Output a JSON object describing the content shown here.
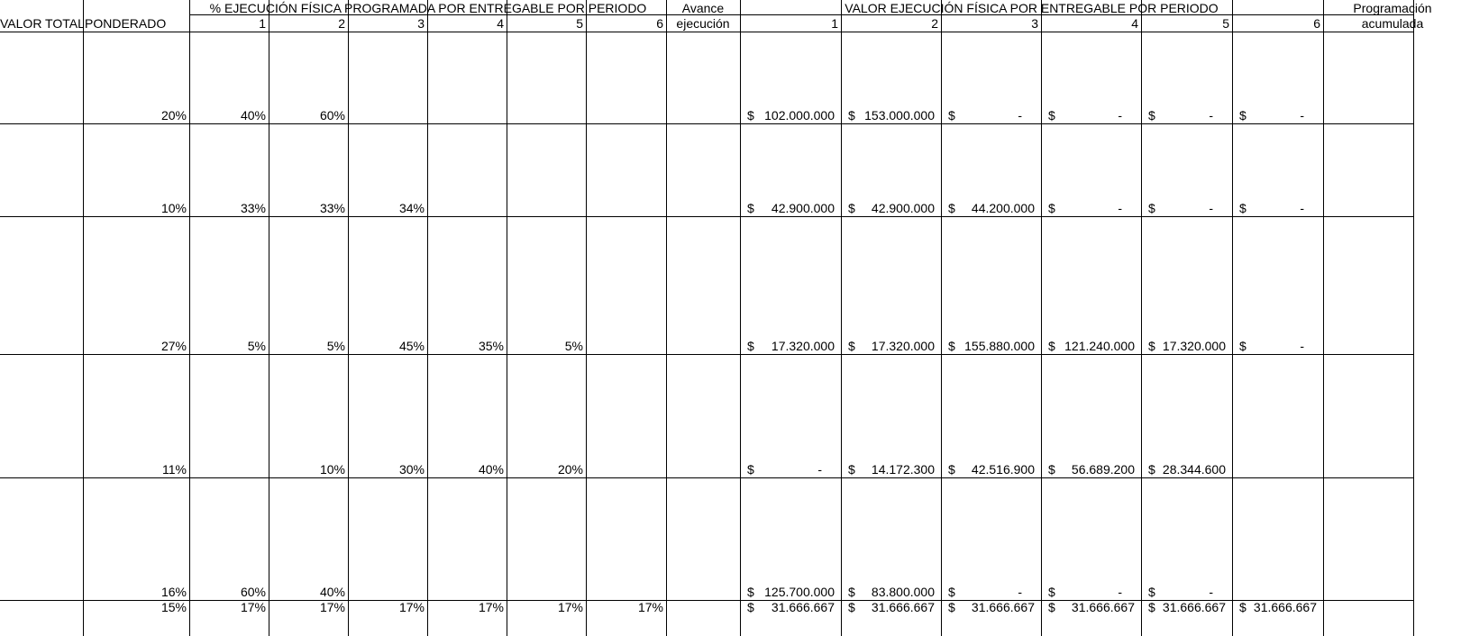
{
  "headers": {
    "valor_total": "VALOR TOTAL",
    "ponderado": "PONDERADO",
    "pct_group": "% EJECUCIÓN FÍSICA PROGRAMADA POR ENTREGABLE POR PERIODO",
    "avance_1": "Avance",
    "avance_2": "ejecución",
    "valor_group": "VALOR EJECUCIÓN FÍSICA POR ENTREGABLE POR PERIODO",
    "prog_1": "Programación",
    "prog_2": "acumulada",
    "periods": [
      "1",
      "2",
      "3",
      "4",
      "5",
      "6"
    ]
  },
  "currency_symbol": "$",
  "rows": [
    {
      "ponderado": "20%",
      "pct": [
        "40%",
        "60%",
        "",
        "",
        "",
        ""
      ],
      "values": [
        "102.000.000",
        "153.000.000",
        "-",
        "-",
        "-",
        "-"
      ]
    },
    {
      "ponderado": "10%",
      "pct": [
        "33%",
        "33%",
        "34%",
        "",
        "",
        ""
      ],
      "values": [
        "42.900.000",
        "42.900.000",
        "44.200.000",
        "-",
        "-",
        "-"
      ]
    },
    {
      "ponderado": "27%",
      "pct": [
        "5%",
        "5%",
        "45%",
        "35%",
        "5%",
        ""
      ],
      "values": [
        "17.320.000",
        "17.320.000",
        "155.880.000",
        "121.240.000",
        "17.320.000",
        "-"
      ]
    },
    {
      "ponderado": "11%",
      "pct": [
        "",
        "10%",
        "30%",
        "40%",
        "20%",
        ""
      ],
      "values": [
        "-",
        "14.172.300",
        "42.516.900",
        "56.689.200",
        "28.344.600",
        null
      ]
    },
    {
      "ponderado": "16%",
      "pct": [
        "60%",
        "40%",
        "",
        "",
        "",
        ""
      ],
      "values": [
        "125.700.000",
        "83.800.000",
        "-",
        "-",
        "-",
        null
      ]
    }
  ],
  "totals": {
    "ponderado": "15%",
    "pct": [
      "17%",
      "17%",
      "17%",
      "17%",
      "17%",
      "17%"
    ],
    "values": [
      "31.666.667",
      "31.666.667",
      "31.666.667",
      "31.666.667",
      "31.666.667",
      "31.666.667"
    ]
  }
}
